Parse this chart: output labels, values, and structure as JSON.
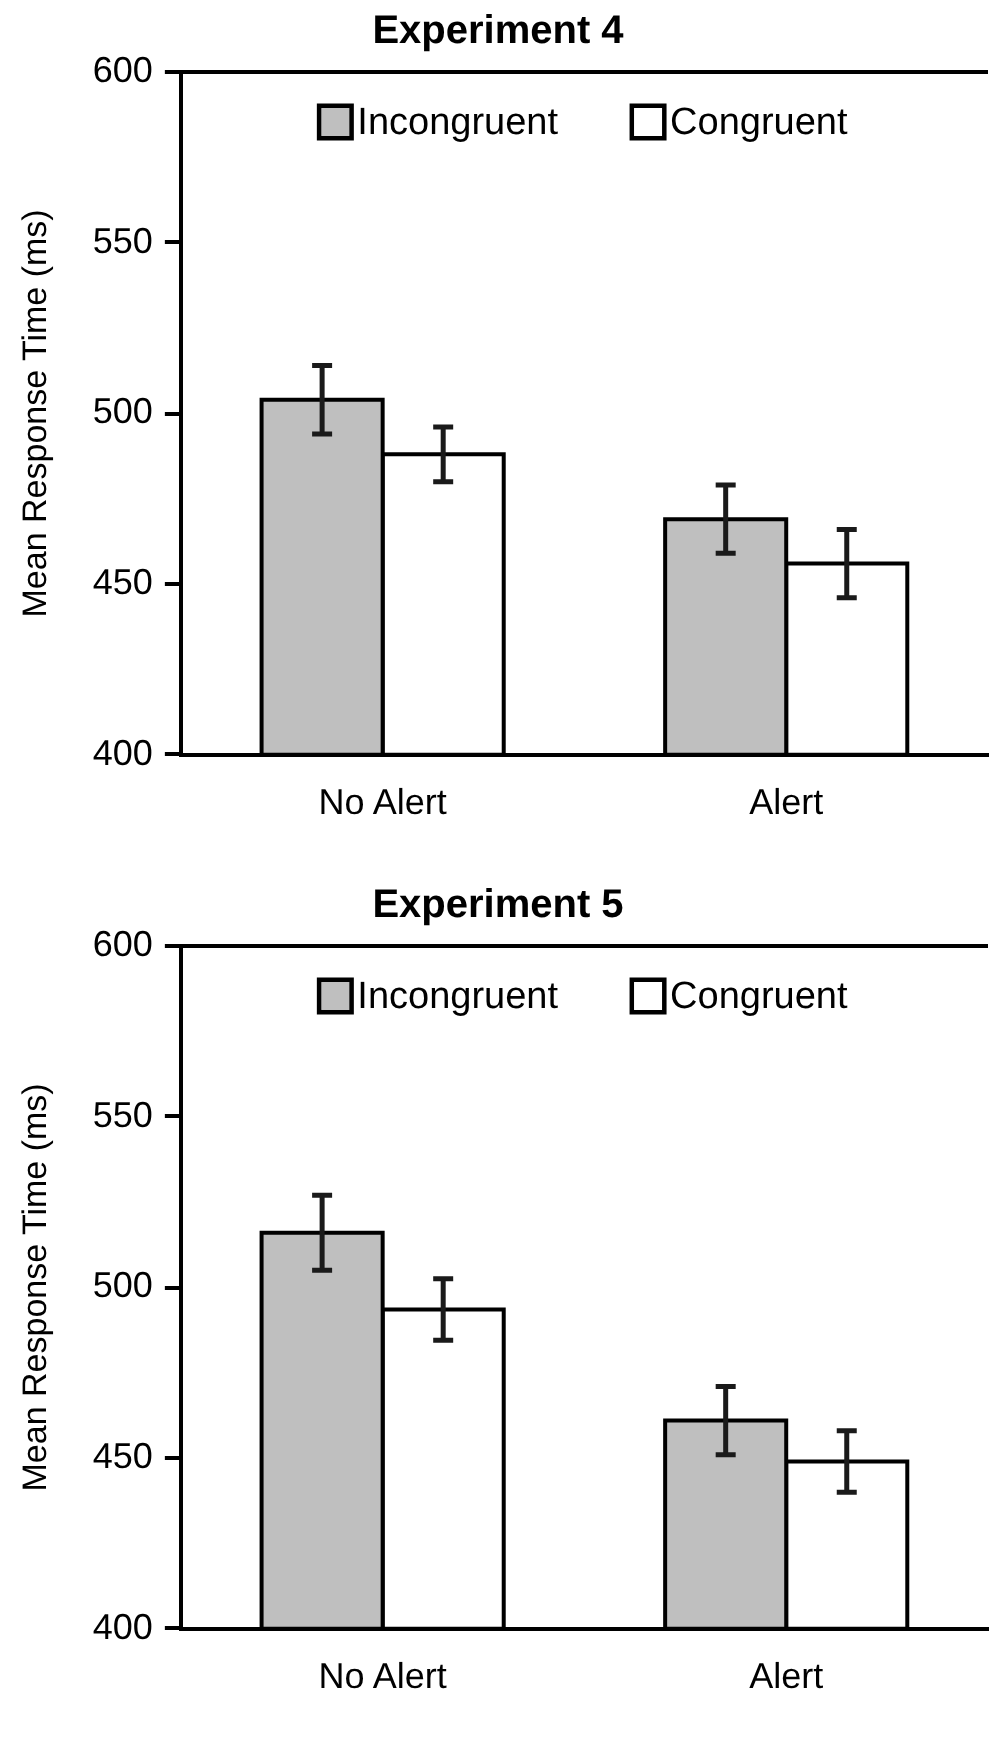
{
  "chart_data": [
    {
      "type": "bar",
      "title": "Experiment 4",
      "ylabel": "Mean Response Time (ms)",
      "categories": [
        "No Alert",
        "Alert"
      ],
      "series": [
        {
          "name": "Incongruent",
          "color": "#bfbfbf",
          "values": [
            504,
            469
          ],
          "errors": [
            10,
            10
          ]
        },
        {
          "name": "Congruent",
          "color": "#ffffff",
          "values": [
            488,
            456
          ],
          "errors": [
            8,
            10
          ]
        }
      ],
      "ylim": [
        400,
        600
      ],
      "yticks": [
        400,
        450,
        500,
        550,
        600
      ],
      "legend": "top",
      "grid": false
    },
    {
      "type": "bar",
      "title": "Experiment 5",
      "ylabel": "Mean Response Time (ms)",
      "categories": [
        "No Alert",
        "Alert"
      ],
      "series": [
        {
          "name": "Incongruent",
          "color": "#bfbfbf",
          "values": [
            516,
            461
          ],
          "errors": [
            11,
            10
          ]
        },
        {
          "name": "Congruent",
          "color": "#ffffff",
          "values": [
            493.5,
            449
          ],
          "errors": [
            9,
            9
          ]
        }
      ],
      "ylim": [
        400,
        600
      ],
      "yticks": [
        400,
        450,
        500,
        550,
        600
      ],
      "legend": "top",
      "grid": false
    }
  ]
}
